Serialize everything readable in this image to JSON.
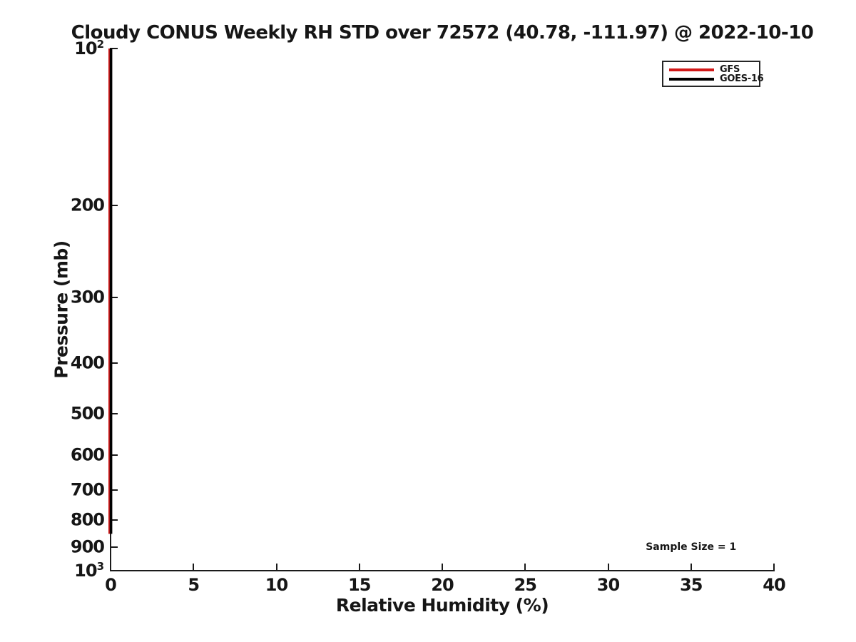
{
  "chart_data": {
    "type": "line",
    "title": "Cloudy CONUS Weekly RH STD over 72572 (40.78, -111.97) @ 2022-10-10",
    "xlabel": "Relative Humidity (%)",
    "ylabel": "Pressure (mb)",
    "xlim": [
      0,
      40
    ],
    "ylim": [
      100,
      1000
    ],
    "yscale": "log",
    "y_axis_direction": "100 mb at top, 1000 mb at bottom",
    "x_ticks": [
      0,
      5,
      10,
      15,
      20,
      25,
      30,
      35,
      40
    ],
    "y_ticks": [
      100,
      200,
      300,
      400,
      500,
      600,
      700,
      800,
      900,
      1000
    ],
    "grid": false,
    "series": [
      {
        "name": "GFS",
        "color": "#d21a1a",
        "x": [
          0,
          0
        ],
        "y": [
          100,
          850
        ]
      },
      {
        "name": "GOES-16",
        "color": "#000000",
        "x": [
          0,
          0
        ],
        "y": [
          100,
          850
        ]
      }
    ],
    "legend": {
      "position": "upper right",
      "entries": [
        "GFS",
        "GOES-16"
      ]
    },
    "annotations": [
      {
        "text": "Sample Size = 1",
        "x": 35,
        "y": 900
      }
    ]
  }
}
